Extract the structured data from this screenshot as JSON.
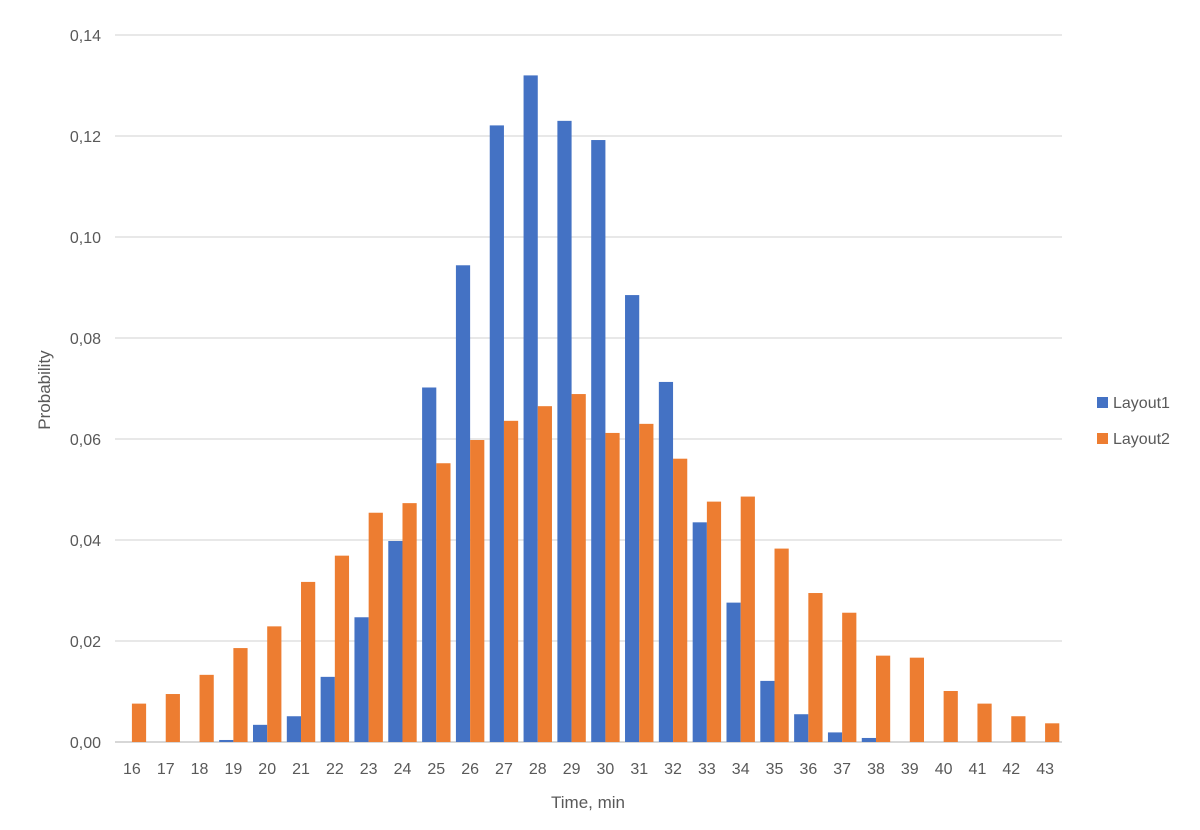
{
  "chart_data": {
    "type": "bar",
    "title": "",
    "xlabel": "Time, min",
    "ylabel": "Probability",
    "ylim": [
      0,
      0.14
    ],
    "y_ticks": [
      "0,00",
      "0,02",
      "0,04",
      "0,06",
      "0,08",
      "0,10",
      "0,12",
      "0,14"
    ],
    "y_tick_values": [
      0,
      0.02,
      0.04,
      0.06,
      0.08,
      0.1,
      0.12,
      0.14
    ],
    "grid": true,
    "legend_position": "right",
    "categories": [
      "16",
      "17",
      "18",
      "19",
      "20",
      "21",
      "22",
      "23",
      "24",
      "25",
      "26",
      "27",
      "28",
      "29",
      "30",
      "31",
      "32",
      "33",
      "34",
      "35",
      "36",
      "37",
      "38",
      "39",
      "40",
      "41",
      "42",
      "43"
    ],
    "series": [
      {
        "name": "Layout1",
        "color": "#4472C4",
        "values": [
          0,
          0,
          0,
          0.0004,
          0.0034,
          0.0051,
          0.0129,
          0.0247,
          0.0398,
          0.0702,
          0.0944,
          0.1221,
          0.132,
          0.123,
          0.1192,
          0.0885,
          0.0713,
          0.0435,
          0.0276,
          0.0121,
          0.0055,
          0.0019,
          0.0008,
          0,
          0,
          0,
          0,
          0
        ]
      },
      {
        "name": "Layout2",
        "color": "#ED7D31",
        "values": [
          0.0076,
          0.0095,
          0.0133,
          0.0186,
          0.0229,
          0.0317,
          0.0369,
          0.0454,
          0.0473,
          0.0552,
          0.0598,
          0.0636,
          0.0665,
          0.0689,
          0.0612,
          0.063,
          0.0561,
          0.0476,
          0.0486,
          0.0383,
          0.0295,
          0.0256,
          0.0171,
          0.0167,
          0.0101,
          0.0076,
          0.0051,
          0.0037
        ]
      }
    ]
  }
}
